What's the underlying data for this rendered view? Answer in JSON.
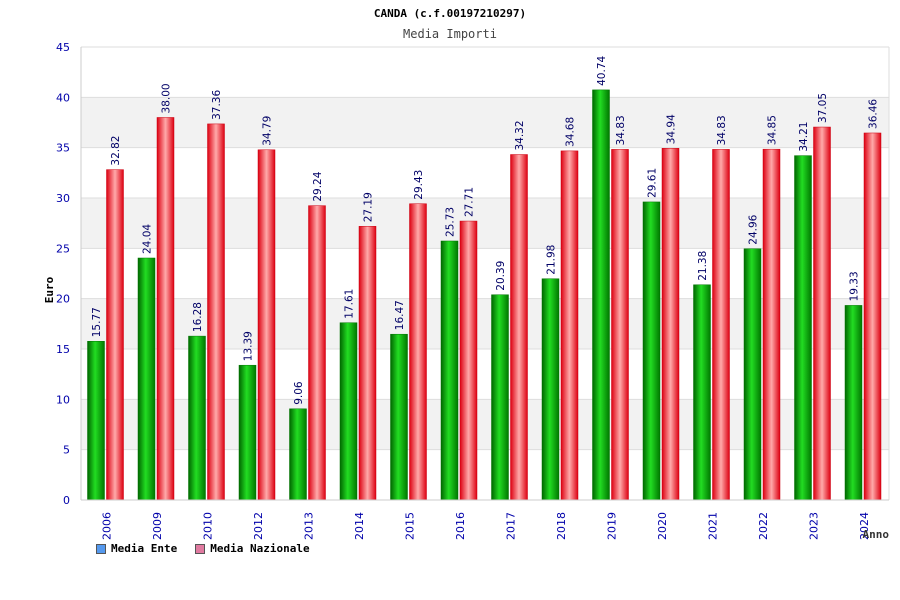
{
  "chart_data": {
    "type": "bar",
    "title": "CANDA (c.f.00197210297)",
    "subtitle": "Media Importi",
    "xlabel": "Anno",
    "ylabel": "Euro",
    "ylim": [
      0,
      45
    ],
    "yticks": [
      "0",
      "5",
      "10",
      "15",
      "20",
      "25",
      "30",
      "35",
      "40",
      "45"
    ],
    "grid": true,
    "legend_position": "bottom-left",
    "categories": [
      "2006",
      "2009",
      "2010",
      "2012",
      "2013",
      "2014",
      "2015",
      "2016",
      "2017",
      "2018",
      "2019",
      "2020",
      "2021",
      "2022",
      "2023",
      "2024"
    ],
    "series": [
      {
        "name": "Media Ente",
        "values": [
          15.77,
          24.04,
          16.28,
          13.39,
          9.06,
          17.61,
          16.47,
          25.73,
          20.39,
          21.98,
          40.74,
          29.61,
          21.38,
          24.96,
          34.21,
          19.33
        ],
        "labels": [
          "15.77",
          "24.04",
          "16.28",
          "13.39",
          "9.06",
          "17.61",
          "16.47",
          "25.73",
          "20.39",
          "21.98",
          "40.74",
          "29.61",
          "21.38",
          "24.96",
          "34.21",
          "19.33"
        ]
      },
      {
        "name": "Media Nazionale",
        "values": [
          32.82,
          38.0,
          37.36,
          34.79,
          29.24,
          27.19,
          29.43,
          27.71,
          34.32,
          34.68,
          34.83,
          34.94,
          34.83,
          34.85,
          37.05,
          36.46
        ],
        "labels": [
          "32.82",
          "38.00",
          "37.36",
          "34.79",
          "29.24",
          "27.19",
          "29.43",
          "27.71",
          "34.32",
          "34.68",
          "34.83",
          "34.94",
          "34.83",
          "34.85",
          "37.05",
          "36.46"
        ]
      }
    ]
  },
  "legend": {
    "items": [
      {
        "label": "Media Ente",
        "color": "#5599ee"
      },
      {
        "label": "Media Nazionale",
        "color": "#e07aa0"
      }
    ]
  },
  "colors": {
    "ente_fill": "#00b400",
    "nazionale_fill": "#ee2233",
    "tick_label": "#0000aa",
    "value_label": "#000066",
    "band": "#f2f2f2",
    "gridline": "#dddddd"
  }
}
